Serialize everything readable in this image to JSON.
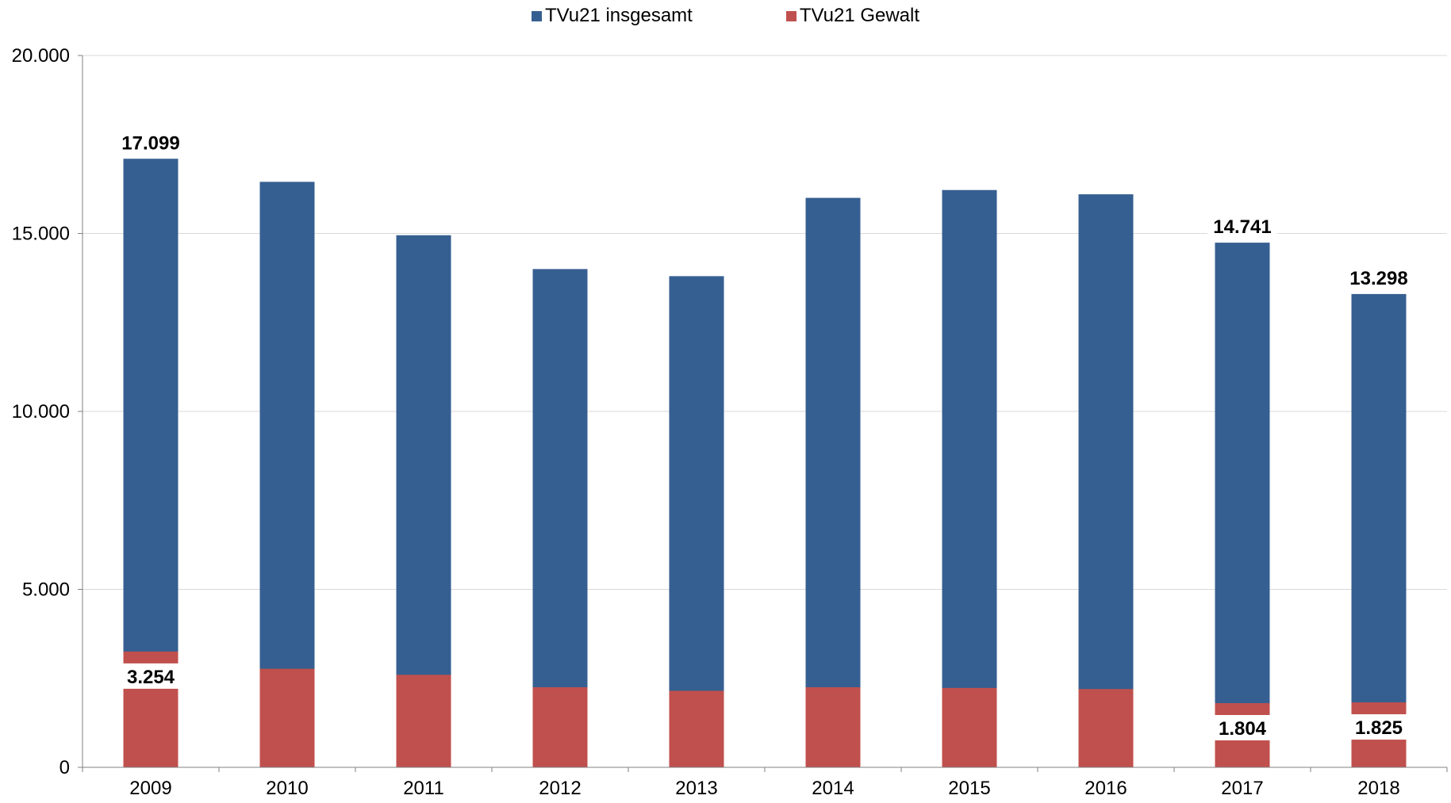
{
  "chart_data": {
    "type": "bar",
    "stacking": "overlapping",
    "categories": [
      "2009",
      "2010",
      "2011",
      "2012",
      "2013",
      "2014",
      "2015",
      "2016",
      "2017",
      "2018"
    ],
    "series": [
      {
        "name": "TVu21 insgesamt",
        "color": "#365f91",
        "values": [
          17099,
          16450,
          14950,
          14000,
          13800,
          16000,
          16220,
          16100,
          14741,
          13298
        ]
      },
      {
        "name": "TVu21 Gewalt",
        "color": "#c0504d",
        "values": [
          3254,
          2770,
          2600,
          2250,
          2150,
          2250,
          2230,
          2200,
          1804,
          1825
        ]
      }
    ],
    "data_labels": [
      {
        "category": "2009",
        "series": "TVu21 insgesamt",
        "text": "17.099"
      },
      {
        "category": "2017",
        "series": "TVu21 insgesamt",
        "text": "14.741"
      },
      {
        "category": "2018",
        "series": "TVu21 insgesamt",
        "text": "13.298"
      },
      {
        "category": "2009",
        "series": "TVu21 Gewalt",
        "text": "3.254"
      },
      {
        "category": "2017",
        "series": "TVu21 Gewalt",
        "text": "1.804"
      },
      {
        "category": "2018",
        "series": "TVu21 Gewalt",
        "text": "1.825"
      }
    ],
    "ylim": [
      0,
      20000
    ],
    "yticks": [
      0,
      5000,
      10000,
      15000,
      20000
    ],
    "ytick_labels": [
      "0",
      "5.000",
      "10.000",
      "15.000",
      "20.000"
    ],
    "grid": true,
    "legend_position": "top"
  }
}
